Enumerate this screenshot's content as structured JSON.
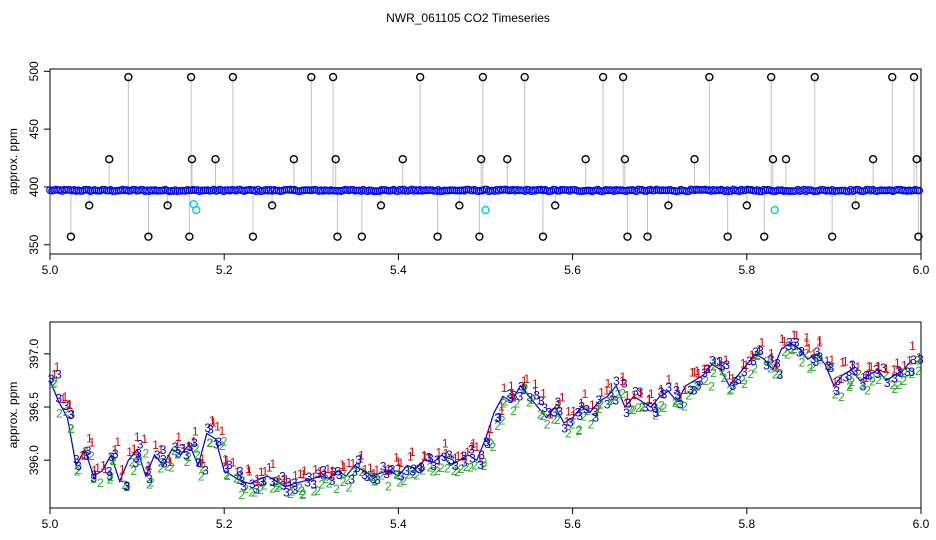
{
  "title": "NWR_061105  CO2 Timeseries",
  "chart_data": [
    {
      "type": "scatter",
      "title": "",
      "xlabel": "",
      "ylabel": "approx. ppm",
      "xlim": [
        5.0,
        6.0
      ],
      "ylim": [
        342,
        502
      ],
      "xticks": [
        "5.0",
        "5.2",
        "5.4",
        "5.6",
        "5.8",
        "6.0"
      ],
      "yticks": [
        "350",
        "400",
        "450",
        "500"
      ],
      "series_colors": {
        "main": "#0000ff",
        "highlight": "#00cccc",
        "flagged": "#000000"
      },
      "series": [
        {
          "name": "",
          "points": "dense band of blue circles near 397 ppm from x 5.0 to 6.0"
        }
      ],
      "baseline": 397,
      "high_flag_x": [
        5.09,
        5.162,
        5.21,
        5.3,
        5.325,
        5.425,
        5.497,
        5.545,
        5.635,
        5.658,
        5.757,
        5.828,
        5.878,
        5.967,
        5.992
      ],
      "mid_flag_x": [
        5.068,
        5.163,
        5.19,
        5.28,
        5.328,
        5.405,
        5.495,
        5.525,
        5.615,
        5.66,
        5.74,
        5.83,
        5.845,
        5.945,
        5.995
      ],
      "low_flag_x": [
        5.024,
        5.113,
        5.16,
        5.233,
        5.33,
        5.358,
        5.445,
        5.493,
        5.566,
        5.663,
        5.686,
        5.778,
        5.82,
        5.898,
        5.997
      ],
      "small_flag_x": [
        5.045,
        5.135,
        5.255,
        5.38,
        5.47,
        5.58,
        5.71,
        5.8,
        5.925
      ],
      "high_flag_y": 495,
      "mid_flag_y": 424,
      "low_flag_y": 357,
      "small_flag_y": 384,
      "cyan_points": [
        [
          5.165,
          385
        ],
        [
          5.168,
          380
        ],
        [
          5.5,
          380
        ],
        [
          5.832,
          380
        ]
      ]
    },
    {
      "type": "line",
      "title": "",
      "xlabel": "",
      "ylabel": "approx. ppm",
      "xlim": [
        5.0,
        6.0
      ],
      "ylim": [
        395.55,
        397.3
      ],
      "xticks": [
        "5.0",
        "5.2",
        "5.4",
        "5.6",
        "5.8",
        "6.0"
      ],
      "yticks": [
        "396.0",
        "396.5",
        "397.0"
      ],
      "labels": [
        "1",
        "2",
        "3"
      ],
      "series_colors": {
        "1": "#dd0000",
        "2": "#22aa22",
        "3": "#0000cc"
      },
      "x": [
        5.0,
        5.01,
        5.02,
        5.03,
        5.04,
        5.05,
        5.06,
        5.07,
        5.08,
        5.09,
        5.1,
        5.11,
        5.12,
        5.13,
        5.14,
        5.15,
        5.16,
        5.17,
        5.18,
        5.19,
        5.2,
        5.21,
        5.22,
        5.23,
        5.24,
        5.25,
        5.26,
        5.27,
        5.28,
        5.29,
        5.3,
        5.31,
        5.32,
        5.33,
        5.34,
        5.35,
        5.36,
        5.37,
        5.38,
        5.39,
        5.4,
        5.41,
        5.42,
        5.43,
        5.44,
        5.45,
        5.46,
        5.47,
        5.48,
        5.49,
        5.5,
        5.51,
        5.52,
        5.53,
        5.54,
        5.55,
        5.56,
        5.57,
        5.58,
        5.59,
        5.6,
        5.61,
        5.62,
        5.63,
        5.64,
        5.65,
        5.66,
        5.67,
        5.68,
        5.69,
        5.7,
        5.71,
        5.72,
        5.73,
        5.74,
        5.75,
        5.76,
        5.77,
        5.78,
        5.79,
        5.8,
        5.81,
        5.82,
        5.83,
        5.84,
        5.85,
        5.86,
        5.87,
        5.88,
        5.89,
        5.9,
        5.91,
        5.92,
        5.93,
        5.94,
        5.95,
        5.96,
        5.97,
        5.98,
        5.99
      ],
      "y": [
        396.75,
        396.55,
        396.4,
        395.95,
        396.1,
        395.85,
        395.9,
        396.05,
        395.8,
        396.0,
        396.1,
        395.85,
        396.05,
        395.95,
        396.1,
        396.05,
        396.15,
        395.95,
        396.25,
        396.2,
        395.9,
        395.85,
        395.8,
        395.78,
        395.82,
        395.85,
        395.8,
        395.75,
        395.78,
        395.8,
        395.82,
        395.85,
        395.83,
        395.9,
        395.85,
        395.95,
        395.9,
        395.85,
        395.88,
        395.9,
        395.85,
        395.95,
        395.92,
        396.0,
        395.98,
        396.05,
        395.95,
        396.0,
        396.05,
        396.0,
        396.2,
        396.45,
        396.6,
        396.55,
        396.7,
        396.6,
        396.5,
        396.4,
        396.5,
        396.35,
        396.4,
        396.5,
        396.45,
        396.55,
        396.6,
        396.7,
        396.5,
        396.6,
        396.55,
        396.5,
        396.6,
        396.65,
        396.55,
        396.7,
        396.75,
        396.8,
        396.9,
        396.85,
        396.7,
        396.8,
        396.9,
        397.0,
        396.95,
        396.85,
        397.05,
        397.1,
        397.05,
        396.95,
        397.0,
        396.9,
        396.7,
        396.8,
        396.85,
        396.75,
        396.8,
        396.85,
        396.75,
        396.8,
        396.85,
        396.95
      ]
    }
  ]
}
